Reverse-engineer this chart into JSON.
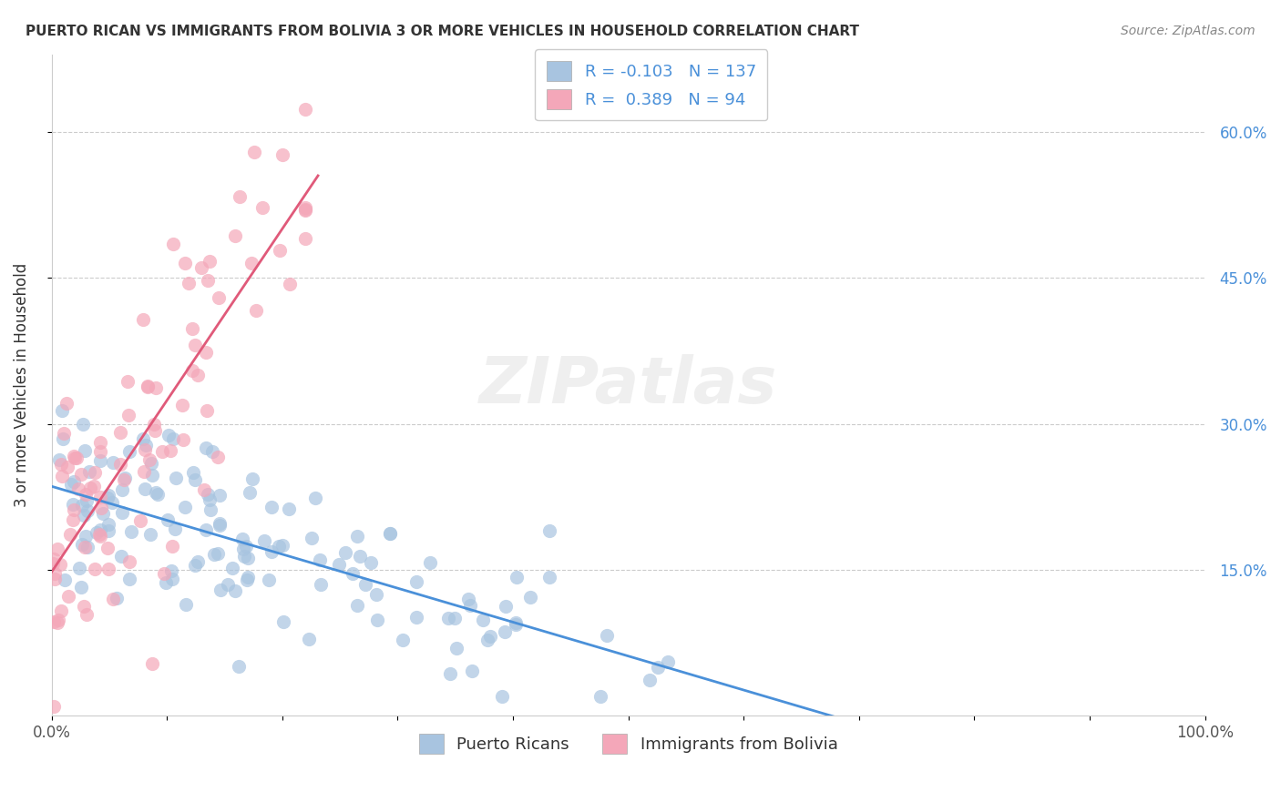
{
  "title": "PUERTO RICAN VS IMMIGRANTS FROM BOLIVIA 3 OR MORE VEHICLES IN HOUSEHOLD CORRELATION CHART",
  "source": "Source: ZipAtlas.com",
  "ylabel": "3 or more Vehicles in Household",
  "legend_labels": [
    "Puerto Ricans",
    "Immigrants from Bolivia"
  ],
  "legend_R": [
    -0.103,
    0.389
  ],
  "legend_N": [
    137,
    94
  ],
  "blue_color": "#a8c4e0",
  "pink_color": "#f4a7b9",
  "line_blue": "#4a90d9",
  "line_pink": "#e05a7a",
  "watermark": "ZIPatlas",
  "xlim": [
    0,
    1.0
  ],
  "ylim": [
    0,
    0.68
  ],
  "ytick_vals": [
    0.15,
    0.3,
    0.45,
    0.6
  ],
  "ytick_labels": [
    "15.0%",
    "30.0%",
    "45.0%",
    "60.0%"
  ],
  "xtick_vals": [
    0.0,
    0.1,
    0.2,
    0.3,
    0.4,
    0.5,
    0.6,
    0.7,
    0.8,
    0.9,
    1.0
  ],
  "grid_color": "#cccccc",
  "spine_color": "#cccccc",
  "title_fontsize": 11,
  "source_fontsize": 10,
  "ylabel_fontsize": 12,
  "tick_fontsize": 12,
  "watermark_fontsize": 52,
  "scatter_size": 120,
  "scatter_alpha": 0.7,
  "line_width": 2.0,
  "N_blue": 137,
  "N_pink": 94,
  "random_seed": 123
}
